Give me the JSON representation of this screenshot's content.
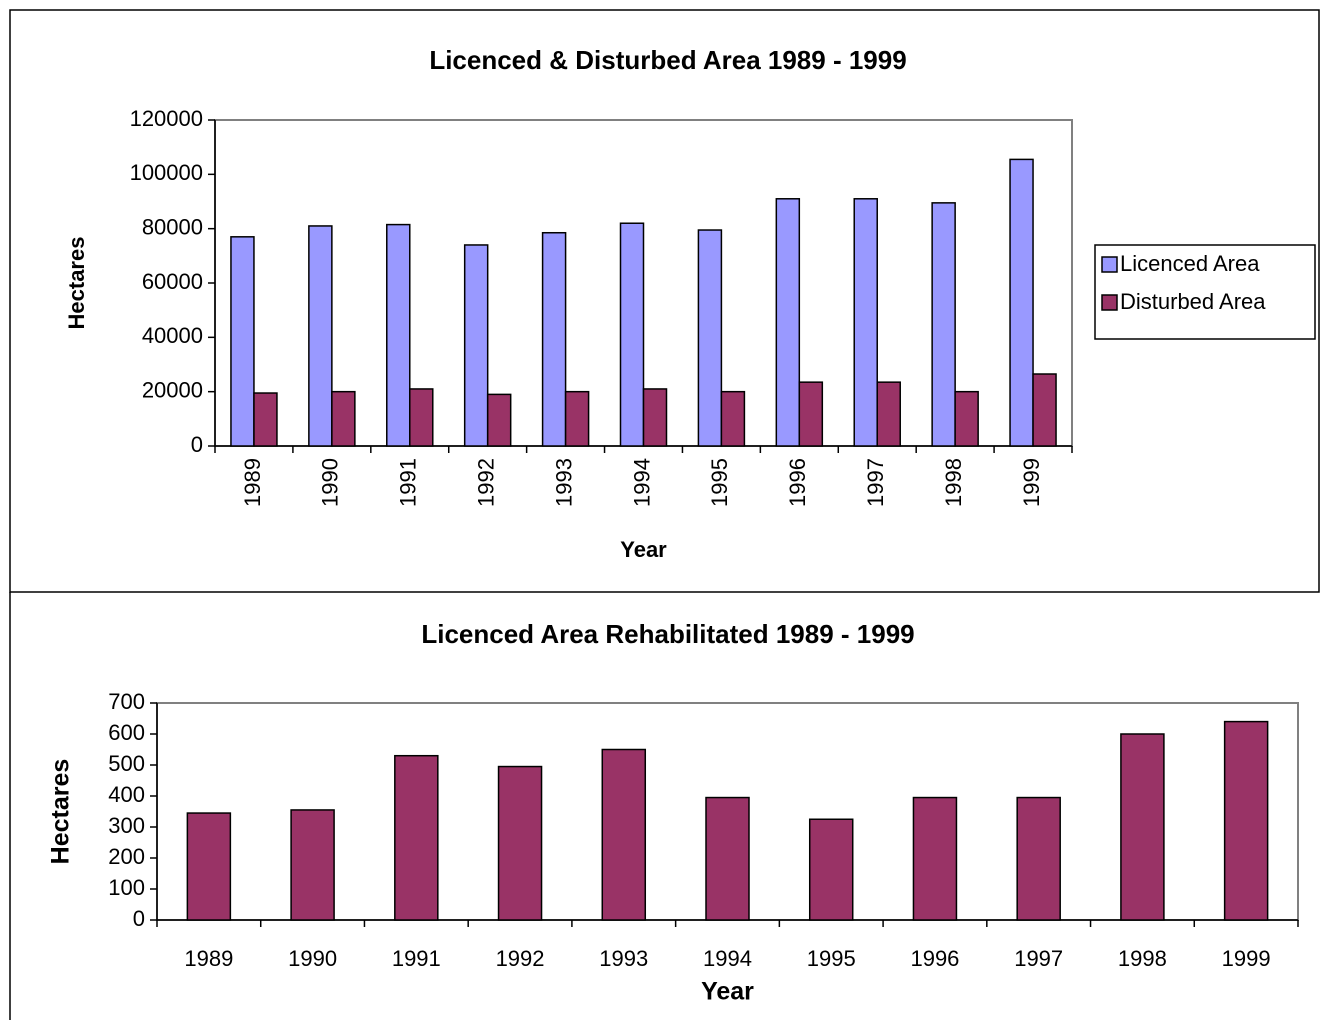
{
  "chart_data": [
    {
      "type": "bar",
      "title": "Licenced & Disturbed Area 1989 - 1999",
      "ylabel": "Hectares",
      "xlabel": "Year",
      "categories": [
        "1989",
        "1990",
        "1991",
        "1992",
        "1993",
        "1994",
        "1995",
        "1996",
        "1997",
        "1998",
        "1999"
      ],
      "series": [
        {
          "name": "Licenced Area",
          "color": "#9999ff",
          "values": [
            77000,
            81000,
            81500,
            74000,
            78500,
            82000,
            79500,
            91000,
            91000,
            89500,
            105500
          ]
        },
        {
          "name": "Disturbed Area",
          "color": "#993366",
          "values": [
            19500,
            20000,
            21000,
            19000,
            20000,
            21000,
            20000,
            23500,
            23500,
            20000,
            26500
          ]
        }
      ],
      "ylim": [
        0,
        120000
      ],
      "yticks": [
        0,
        20000,
        40000,
        60000,
        80000,
        100000,
        120000
      ],
      "legend": "right"
    },
    {
      "type": "bar",
      "title": "Licenced Area Rehabilitated 1989 - 1999",
      "ylabel": "Hectares",
      "xlabel": "Year",
      "categories": [
        "1989",
        "1990",
        "1991",
        "1992",
        "1993",
        "1994",
        "1995",
        "1996",
        "1997",
        "1998",
        "1999"
      ],
      "values": [
        345,
        355,
        530,
        495,
        550,
        395,
        325,
        395,
        395,
        600,
        640
      ],
      "color": "#993366",
      "ylim": [
        0,
        700
      ],
      "yticks": [
        0,
        100,
        200,
        300,
        400,
        500,
        600,
        700
      ]
    }
  ]
}
